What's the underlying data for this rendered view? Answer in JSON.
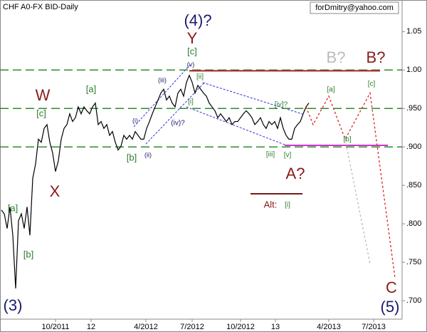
{
  "chart_data": {
    "type": "line",
    "title": "CHF A0-FX BID-Daily",
    "watermark": "forDmitry@yahoo.com",
    "xlim": [
      -0.5,
      140.75
    ],
    "ylim": [
      0.676,
      1.091
    ],
    "xticks": [
      {
        "value": 19,
        "label": "10/2011"
      },
      {
        "value": 31.5,
        "label": "12"
      },
      {
        "value": 50.75,
        "label": "4/2012"
      },
      {
        "value": 67,
        "label": "7/2012"
      },
      {
        "value": 84,
        "label": "10/2012"
      },
      {
        "value": 96.25,
        "label": "13"
      },
      {
        "value": 115,
        "label": "4/2013"
      },
      {
        "value": 130.75,
        "label": "7/2013"
      }
    ],
    "yticks": [
      1.05,
      {
        "value": 1.0,
        "label": "1.00"
      },
      {
        "value": 0.95,
        "label": ".950"
      },
      {
        "value": 0.9,
        "label": ".900"
      },
      {
        "value": 0.85,
        "label": ".850"
      },
      {
        "value": 0.8,
        "label": ".800"
      },
      {
        "value": 0.75,
        "label": ".750"
      },
      {
        "value": 0.7,
        "label": ".700"
      }
    ],
    "series": [
      {
        "color": "#000000",
        "values": [
          0.818,
          0.813,
          0.794,
          0.822,
          0.785,
          0.716,
          0.804,
          0.813,
          0.794,
          0.822,
          0.785,
          0.859,
          0.878,
          0.91,
          0.906,
          0.924,
          0.929,
          0.906,
          0.892,
          0.868,
          0.882,
          0.91,
          0.924,
          0.929,
          0.943,
          0.933,
          0.938,
          0.952,
          0.943,
          0.952,
          0.947,
          0.943,
          0.952,
          0.957,
          0.929,
          0.933,
          0.924,
          0.929,
          0.915,
          0.92,
          0.906,
          0.896,
          0.901,
          0.915,
          0.91,
          0.915,
          0.91,
          0.92,
          0.915,
          0.91,
          0.91,
          0.924,
          0.933,
          0.943,
          0.952,
          0.961,
          0.97,
          0.975,
          0.961,
          0.966,
          0.957,
          0.952,
          0.97,
          0.975,
          0.966,
          0.984,
          0.993,
          0.984,
          0.97,
          0.98,
          0.975,
          0.97,
          0.966,
          0.957,
          0.952,
          0.947,
          0.938,
          0.943,
          0.938,
          0.933,
          0.938,
          0.929,
          0.933,
          0.933,
          0.938,
          0.943,
          0.947,
          0.943,
          0.938,
          0.929,
          0.933,
          0.938,
          0.929,
          0.924,
          0.933,
          0.929,
          0.933,
          0.924,
          0.938,
          0.924,
          0.915,
          0.91,
          0.91,
          0.924,
          0.929,
          0.933,
          0.943,
          0.952,
          0.957
        ]
      }
    ],
    "projections": [
      {
        "color": "#dd2222",
        "x": [
          107,
          109.5,
          115,
          120.75,
          129.5,
          138.25
        ],
        "values": [
          0.952,
          0.929,
          0.966,
          0.91,
          0.97,
          0.73
        ]
      },
      {
        "color": "#bbbbbb",
        "x": [
          120.75,
          129.5
        ],
        "values": [
          0.91,
          0.748
        ]
      }
    ],
    "levels": [
      1.0,
      0.95,
      0.9
    ],
    "level_color": "#2e8b2e",
    "lines": [
      {
        "value": 0.999,
        "from": 66,
        "to": 133,
        "color": "#aa2222"
      },
      {
        "value": 0.902,
        "from": 99.5,
        "to": 135.75,
        "color": "#cc33cc"
      },
      {
        "value": 0.839,
        "from": 87.5,
        "to": 105.75,
        "color": "#7a1a1a"
      }
    ],
    "annotations": [
      "(4)?",
      "Y",
      "[c]",
      "(v)",
      "[ii]",
      "[i]",
      "(iii)",
      "(iv)?",
      "(i)",
      "(ii)",
      "[b]",
      "[a]",
      "W",
      "[c]",
      "X",
      "[a]",
      "[b]",
      "(3)",
      "[iv]?",
      "[iii]",
      "[v]",
      "A?",
      "Alt:",
      "[i]",
      "B?",
      "B?",
      "[a]",
      "[b]",
      "[c]",
      "C",
      "(5)"
    ]
  }
}
